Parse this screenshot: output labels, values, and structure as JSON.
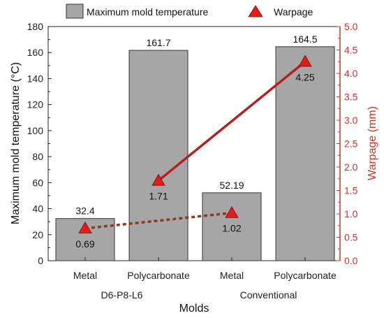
{
  "chart_data": {
    "type": "bar",
    "xlabel": "Molds",
    "ylabel": "Maximum mold temperature (°C)",
    "ylabel_right": "Warpage (mm)",
    "ylim": [
      0,
      180
    ],
    "ylim_right": [
      0,
      5.0
    ],
    "left_ticks": [
      "0",
      "20",
      "40",
      "60",
      "80",
      "100",
      "120",
      "140",
      "160",
      "180"
    ],
    "right_ticks": [
      "0.0",
      "0.5",
      "1.0",
      "1.5",
      "2.0",
      "2.5",
      "3.0",
      "3.5",
      "4.0",
      "4.5",
      "5.0"
    ],
    "categories": [
      "Metal",
      "Polycarbonate",
      "Metal",
      "Polycarbonate"
    ],
    "groups": [
      {
        "label": "D6-P8-L6",
        "categories": [
          0,
          1
        ]
      },
      {
        "label": "Conventional",
        "categories": [
          2,
          3
        ]
      }
    ],
    "series": [
      {
        "name": "Maximum mold temperature",
        "type": "bar",
        "axis": "left",
        "values": [
          32.4,
          161.7,
          52.19,
          164.5
        ],
        "labels": [
          "32.4",
          "161.7",
          "52.19",
          "164.5"
        ],
        "color": "#a6a6a6"
      },
      {
        "name": "Warpage",
        "type": "line",
        "axis": "right",
        "values": [
          0.69,
          1.71,
          1.02,
          4.25
        ],
        "labels": [
          "0.69",
          "1.71",
          "1.02",
          "4.25"
        ],
        "color": "#e21b1b"
      }
    ],
    "legend_position": "top",
    "grid": false
  },
  "colors": {
    "left_axis": "#222222",
    "right_axis": "#c0392b",
    "bar_fill": "#a6a6a6",
    "bar_stroke": "#333333",
    "marker": "#e21b1b",
    "line_metal": "#8b3a1f",
    "line_polycarbonate": "#b22222"
  }
}
